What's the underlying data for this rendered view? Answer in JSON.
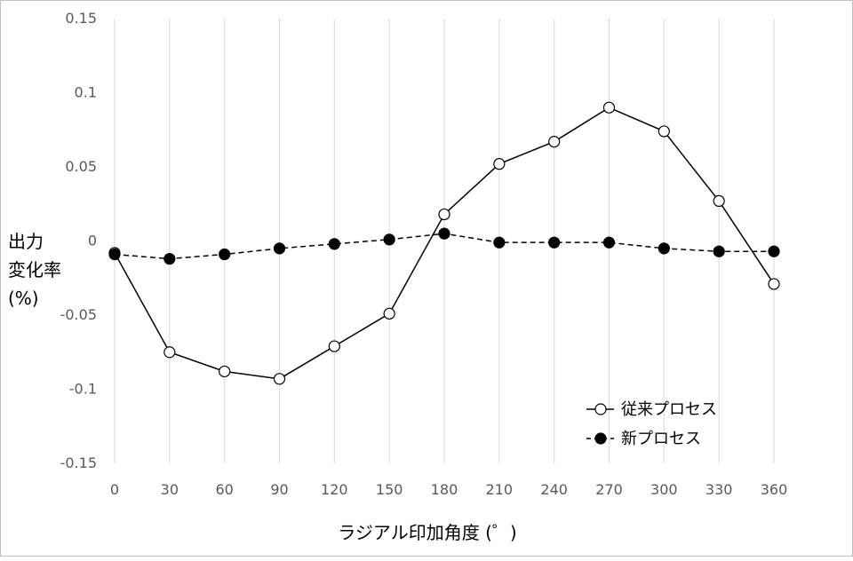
{
  "chart_data": {
    "type": "line",
    "xlabel": "ラジアル印加角度 (゜)",
    "ylabel_lines": [
      "出力",
      "変化率",
      "(%)"
    ],
    "x": [
      0,
      30,
      60,
      90,
      120,
      150,
      180,
      210,
      240,
      270,
      300,
      330,
      360
    ],
    "xlim": [
      0,
      360
    ],
    "ylim": [
      -0.15,
      0.15
    ],
    "x_ticks": [
      "0",
      "30",
      "60",
      "90",
      "120",
      "150",
      "180",
      "210",
      "240",
      "270",
      "300",
      "330",
      "360"
    ],
    "y_ticks": [
      "0.15",
      "0.1",
      "0.05",
      "0",
      "-0.05",
      "-0.1",
      "-0.15"
    ],
    "y_tick_values": [
      0.15,
      0.1,
      0.05,
      0,
      -0.05,
      -0.1,
      -0.15
    ],
    "grid": "vertical",
    "legend_position": "bottom-right",
    "series": [
      {
        "name": "従来プロセス",
        "values": [
          -0.008,
          -0.075,
          -0.088,
          -0.093,
          -0.071,
          -0.049,
          0.018,
          0.052,
          0.067,
          0.09,
          0.074,
          0.027,
          -0.029
        ],
        "marker": "open-circle",
        "line_style": "solid",
        "color": "#000000"
      },
      {
        "name": "新プロセス",
        "values": [
          -0.009,
          -0.012,
          -0.009,
          -0.005,
          -0.002,
          0.001,
          0.005,
          -0.001,
          -0.001,
          -0.001,
          -0.005,
          -0.007,
          -0.007
        ],
        "marker": "filled-circle",
        "line_style": "dashed",
        "color": "#000000"
      }
    ]
  }
}
